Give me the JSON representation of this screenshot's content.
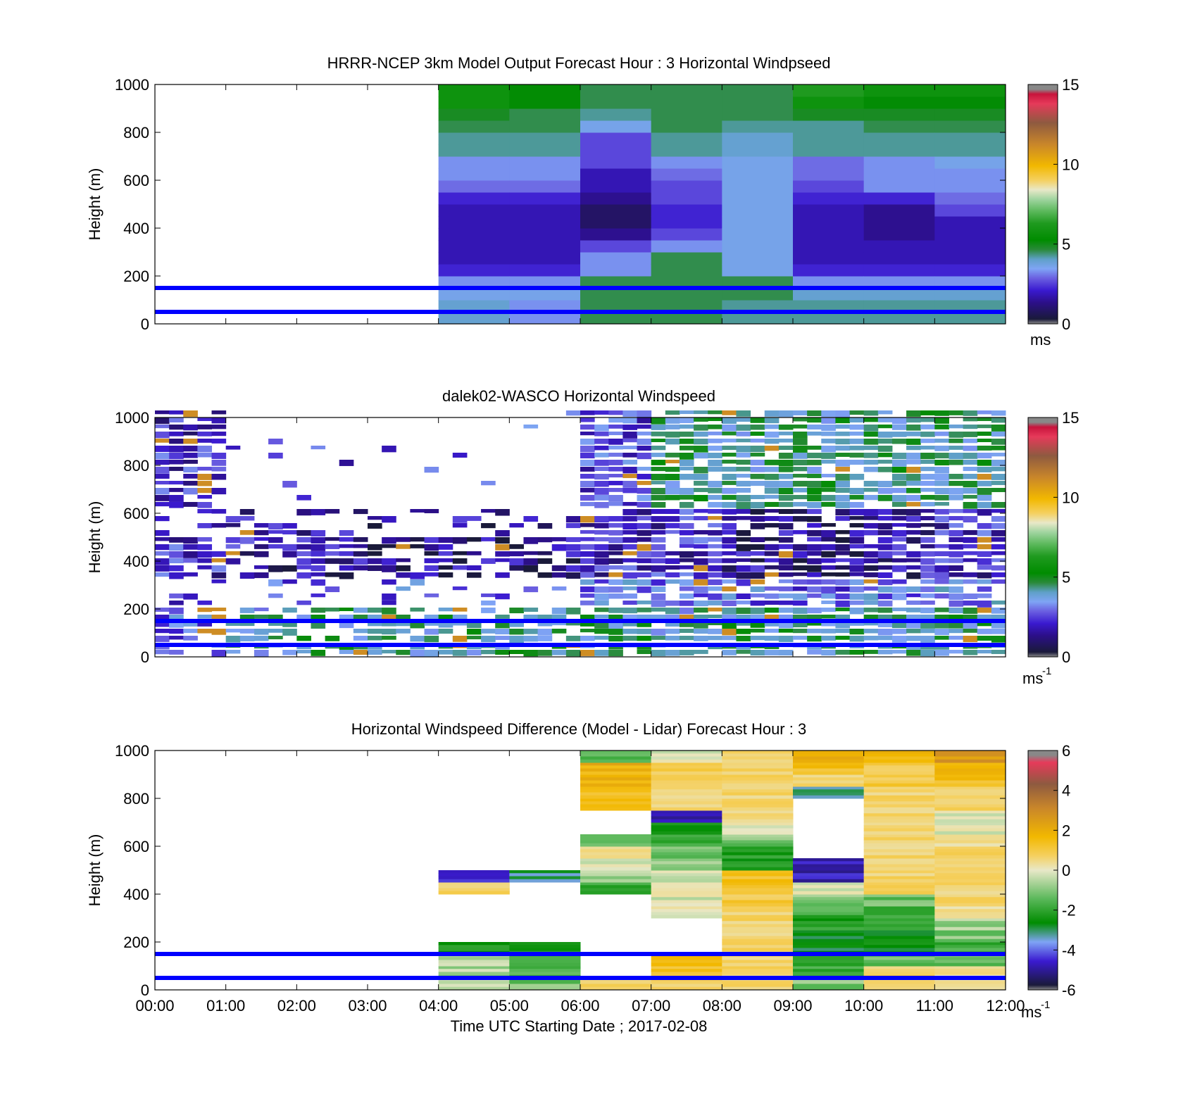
{
  "colors": {
    "ref_line": "#0000ff",
    "axis": "#000000",
    "missing": "#ffffff",
    "speed_scale": [
      "#1a1a3a",
      "#2c0f8a",
      "#3a1ad0",
      "#6a5ee0",
      "#7fa4f5",
      "#5fa0c8",
      "#2a8a3a",
      "#008c00",
      "#1f9a1f",
      "#5ab85a",
      "#9fd49f",
      "#e8e8c8",
      "#f5d060",
      "#f2b800",
      "#c9862a",
      "#8e5a40",
      "#e63a5a"
    ],
    "diff_scale": [
      "#1a1a3a",
      "#3a1ad0",
      "#7fa4f5",
      "#008c00",
      "#5ab85a",
      "#e8e8c8",
      "#f5d060",
      "#f2b800",
      "#c9862a",
      "#8e5a40",
      "#e63a5a"
    ]
  },
  "panels": [
    {
      "id": "model",
      "title": "HRRR-NCEP 3km Model Output   Forecast Hour : 3 Horizontal Windpseed",
      "ylabel": "Height (m)",
      "yticks": [
        "0",
        "200",
        "400",
        "600",
        "800",
        "1000"
      ],
      "colorbar_ticks": [
        "0",
        "5",
        "10",
        "15"
      ],
      "colorbar_unit": "ms",
      "colorbar_exp": "",
      "show_xticklabels": false
    },
    {
      "id": "lidar",
      "title": "dalek02-WASCO  Horizontal Windspeed",
      "ylabel": "Height (m)",
      "yticks": [
        "0",
        "200",
        "400",
        "600",
        "800",
        "1000"
      ],
      "colorbar_ticks": [
        "0",
        "5",
        "10",
        "15"
      ],
      "colorbar_unit": "ms",
      "colorbar_exp": "-1",
      "show_xticklabels": false
    },
    {
      "id": "difference",
      "title": "Horizontal Windspeed Difference (Model - Lidar) Forecast Hour : 3",
      "ylabel": "Height (m)",
      "yticks": [
        "0",
        "200",
        "400",
        "600",
        "800",
        "1000"
      ],
      "colorbar_ticks": [
        "-6",
        "-4",
        "-2",
        "0",
        "2",
        "4",
        "6"
      ],
      "colorbar_unit": "ms",
      "colorbar_exp": "-1",
      "show_xticklabels": true
    }
  ],
  "xticks": [
    "00:00",
    "01:00",
    "02:00",
    "03:00",
    "04:00",
    "05:00",
    "06:00",
    "07:00",
    "08:00",
    "09:00",
    "10:00",
    "11:00",
    "12:00"
  ],
  "xlabel": "Time UTC  Starting Date ; 2017-02-08",
  "chart_data": [
    {
      "type": "heatmap",
      "title": "HRRR-NCEP 3km Model Output   Forecast Hour : 3 Horizontal Windpseed",
      "ylabel": "Height (m)",
      "ylim": [
        0,
        1000
      ],
      "x": [
        "04:00",
        "05:00",
        "06:00",
        "07:00",
        "08:00",
        "09:00",
        "10:00",
        "11:00"
      ],
      "y": [
        25,
        75,
        125,
        175,
        225,
        275,
        325,
        375,
        425,
        475,
        525,
        575,
        625,
        675,
        725,
        775,
        825,
        875,
        925,
        975
      ],
      "values": [
        [
          4.5,
          3.5,
          5.5,
          5.5,
          5.0,
          5.0,
          5.0,
          5.0
        ],
        [
          4.5,
          3.5,
          5.5,
          5.5,
          5.0,
          5.0,
          5.0,
          5.0
        ],
        [
          4.0,
          4.0,
          5.5,
          5.5,
          5.5,
          4.5,
          4.5,
          4.5
        ],
        [
          3.5,
          3.5,
          5.5,
          5.5,
          5.5,
          3.5,
          3.5,
          3.5
        ],
        [
          2.0,
          2.0,
          3.5,
          5.5,
          4.0,
          2.0,
          2.0,
          2.0
        ],
        [
          1.5,
          1.5,
          3.5,
          5.5,
          4.0,
          1.5,
          1.5,
          1.5
        ],
        [
          1.5,
          1.5,
          2.5,
          3.5,
          4.0,
          1.5,
          1.5,
          1.5
        ],
        [
          1.5,
          1.5,
          1.0,
          2.5,
          4.0,
          1.5,
          1.0,
          1.5
        ],
        [
          1.5,
          1.5,
          0.5,
          2.0,
          4.0,
          1.5,
          1.0,
          1.5
        ],
        [
          1.5,
          1.5,
          0.5,
          2.0,
          4.0,
          1.5,
          1.0,
          2.5
        ],
        [
          2.0,
          2.0,
          1.0,
          2.5,
          4.0,
          2.0,
          2.0,
          3.0
        ],
        [
          3.0,
          3.0,
          1.5,
          2.5,
          4.0,
          2.5,
          3.5,
          3.5
        ],
        [
          3.5,
          3.5,
          1.5,
          3.0,
          4.0,
          3.0,
          3.5,
          3.5
        ],
        [
          3.5,
          3.5,
          2.5,
          3.5,
          4.0,
          3.0,
          3.5,
          4.0
        ],
        [
          5.0,
          5.0,
          2.5,
          5.0,
          4.5,
          5.0,
          5.0,
          5.0
        ],
        [
          5.0,
          5.0,
          2.5,
          5.0,
          4.5,
          5.0,
          5.0,
          5.0
        ],
        [
          5.5,
          5.5,
          4.0,
          5.5,
          5.0,
          5.0,
          5.5,
          5.5
        ],
        [
          6.0,
          5.5,
          5.0,
          5.5,
          5.5,
          6.0,
          6.0,
          6.0
        ],
        [
          7.0,
          6.5,
          5.5,
          5.5,
          5.5,
          7.0,
          6.5,
          6.5
        ],
        [
          7.0,
          6.5,
          5.5,
          5.5,
          5.5,
          7.5,
          7.0,
          7.0
        ]
      ],
      "reference_lines_m": [
        50,
        150
      ],
      "colorbar": {
        "min": 0,
        "max": 15,
        "unit": "ms"
      }
    },
    {
      "type": "heatmap",
      "title": "dalek02-WASCO  Horizontal Windspeed",
      "ylabel": "Height (m)",
      "ylim": [
        0,
        1000
      ],
      "x_start": "00:00",
      "x_end": "12:00",
      "description_free": true,
      "values_by_hour_band": {
        "hours": [
          "00",
          "01",
          "02",
          "03",
          "04",
          "05",
          "06",
          "07",
          "08",
          "09",
          "10",
          "11"
        ],
        "low_0_200m": [
          3.0,
          4.5,
          5.0,
          5.0,
          5.0,
          5.0,
          5.0,
          4.5,
          5.0,
          5.0,
          5.0,
          5.0
        ],
        "mid_300_500m": [
          2.0,
          1.5,
          1.5,
          1.0,
          1.0,
          1.0,
          2.0,
          2.0,
          1.0,
          1.0,
          1.5,
          2.0
        ],
        "upper_600_1000m": [
          2.0,
          null,
          null,
          null,
          null,
          null,
          2.5,
          5.0,
          5.0,
          5.0,
          5.0,
          5.0
        ]
      },
      "reference_lines_m": [
        50,
        150
      ],
      "colorbar": {
        "min": 0,
        "max": 15,
        "unit": "ms-1"
      }
    },
    {
      "type": "heatmap",
      "title": "Horizontal Windspeed Difference (Model - Lidar) Forecast Hour : 3",
      "ylabel": "Height (m)",
      "xlabel": "Time UTC  Starting Date ; 2017-02-08",
      "ylim": [
        0,
        1000
      ],
      "x": [
        "04:00",
        "05:00",
        "06:00",
        "07:00",
        "08:00",
        "09:00",
        "10:00",
        "11:00"
      ],
      "y": [
        25,
        75,
        125,
        175,
        225,
        275,
        325,
        375,
        425,
        475,
        525,
        575,
        625,
        675,
        725,
        775,
        825,
        875,
        925,
        975
      ],
      "values": [
        [
          -0.5,
          -1.0,
          1.0,
          1.0,
          1.0,
          -1.0,
          1.0,
          0.5
        ],
        [
          -0.5,
          -1.5,
          null,
          2.0,
          1.0,
          -1.5,
          1.0,
          0.5
        ],
        [
          -0.5,
          -1.5,
          null,
          2.5,
          1.0,
          -1.5,
          -1.0,
          -1.0
        ],
        [
          -2.0,
          -2.0,
          null,
          null,
          1.0,
          -2.5,
          -2.5,
          -1.5
        ],
        [
          null,
          null,
          null,
          null,
          1.0,
          -2.5,
          -2.5,
          -1.0
        ],
        [
          null,
          null,
          null,
          null,
          1.0,
          -2.0,
          -2.0,
          -0.5
        ],
        [
          null,
          null,
          null,
          0.0,
          1.0,
          -1.5,
          -1.5,
          0.5
        ],
        [
          null,
          null,
          null,
          0.0,
          1.5,
          -1.0,
          -1.0,
          1.0
        ],
        [
          1.0,
          null,
          -1.5,
          0.0,
          2.0,
          0.0,
          1.0,
          1.0
        ],
        [
          -4.5,
          -3.0,
          -0.5,
          0.0,
          2.0,
          -5.0,
          1.0,
          1.0
        ],
        [
          null,
          null,
          0.0,
          -0.5,
          -2.0,
          -5.0,
          1.0,
          1.0
        ],
        [
          null,
          null,
          0.5,
          -1.0,
          -2.0,
          null,
          1.0,
          1.0
        ],
        [
          null,
          null,
          -1.0,
          -1.5,
          -1.0,
          null,
          1.0,
          0.5
        ],
        [
          null,
          null,
          null,
          -2.0,
          0.0,
          null,
          1.0,
          0.0
        ],
        [
          null,
          null,
          null,
          -5.0,
          1.0,
          null,
          1.0,
          0.0
        ],
        [
          null,
          null,
          2.0,
          1.0,
          1.0,
          null,
          1.0,
          1.0
        ],
        [
          null,
          null,
          2.0,
          1.0,
          1.0,
          -3.0,
          1.0,
          1.0
        ],
        [
          null,
          null,
          2.5,
          1.5,
          1.0,
          1.0,
          1.5,
          2.0
        ],
        [
          null,
          null,
          2.5,
          1.5,
          1.0,
          2.0,
          1.5,
          2.5
        ],
        [
          null,
          null,
          -1.5,
          0.0,
          1.0,
          2.5,
          2.5,
          3.0
        ]
      ],
      "reference_lines_m": [
        50,
        150
      ],
      "colorbar": {
        "min": -6,
        "max": 6,
        "unit": "ms-1"
      }
    }
  ]
}
